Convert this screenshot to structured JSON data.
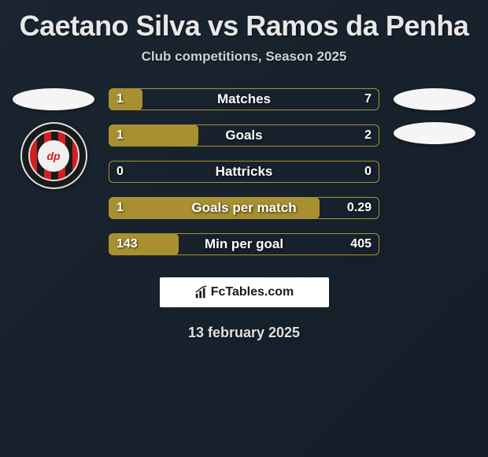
{
  "title": "Caetano Silva vs Ramos da Penha",
  "subtitle": "Club competitions, Season 2025",
  "club": {
    "badge_text": "dp"
  },
  "stats": [
    {
      "label": "Matches",
      "left_val": "1",
      "right_val": "7",
      "fill_pct": 12.5,
      "fill_color": "#a89030",
      "border_color": "#a89030"
    },
    {
      "label": "Goals",
      "left_val": "1",
      "right_val": "2",
      "fill_pct": 33,
      "fill_color": "#a89030",
      "border_color": "#a89030"
    },
    {
      "label": "Hattricks",
      "left_val": "0",
      "right_val": "0",
      "fill_pct": 0,
      "fill_color": "#a89030",
      "border_color": "#a89030"
    },
    {
      "label": "Goals per match",
      "left_val": "1",
      "right_val": "0.29",
      "fill_pct": 78,
      "fill_color": "#a89030",
      "border_color": "#a89030"
    },
    {
      "label": "Min per goal",
      "left_val": "143",
      "right_val": "405",
      "fill_pct": 26,
      "fill_color": "#a89030",
      "border_color": "#a89030"
    }
  ],
  "brand": "FcTables.com",
  "date": "13 february 2025",
  "colors": {
    "bg_start": "#1a2530",
    "bg_end": "#141e28",
    "accent": "#a89030",
    "text": "#e8e8e8"
  }
}
